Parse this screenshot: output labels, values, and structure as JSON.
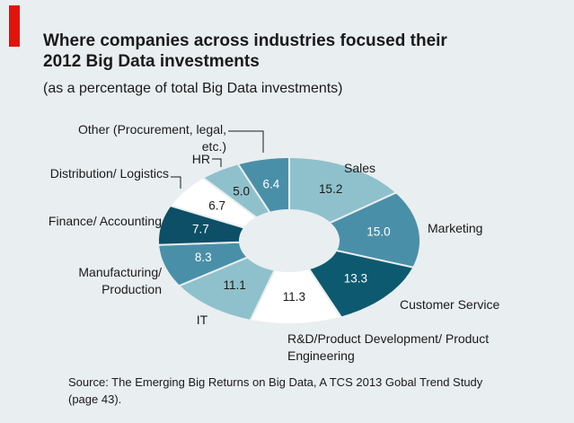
{
  "chart_data": {
    "type": "donut",
    "title": "Where companies across industries focused their 2012 Big Data investments",
    "subtitle": "(as a percentage of total Big Data investments)",
    "source": "Source: The Emerging Big Returns on Big Data, A TCS 2013 Gobal Trend Study (page 43).",
    "categories": [
      "Sales",
      "Marketing",
      "Customer Service",
      "R&D/Product Development/ Product Engineering",
      "IT",
      "Manufacturing/ Production",
      "Finance/ Accounting",
      "Distribution/ Logistics",
      "HR",
      "Other (Procurement, legal, etc.)"
    ],
    "values": [
      15.2,
      15.0,
      13.3,
      11.3,
      11.1,
      8.3,
      7.7,
      6.7,
      5.0,
      6.4
    ],
    "value_labels": [
      "15.2",
      "15.0",
      "13.3",
      "11.3",
      "11.1",
      "8.3",
      "7.7",
      "6.7",
      "5.0",
      "6.4"
    ],
    "colors": [
      "#8fc1cc",
      "#4a8fa8",
      "#0d5a70",
      "#ffffff",
      "#8fc1cc",
      "#4a8fa8",
      "#0d4f66",
      "#ffffff",
      "#8fc1cc",
      "#4a8fa8"
    ]
  }
}
